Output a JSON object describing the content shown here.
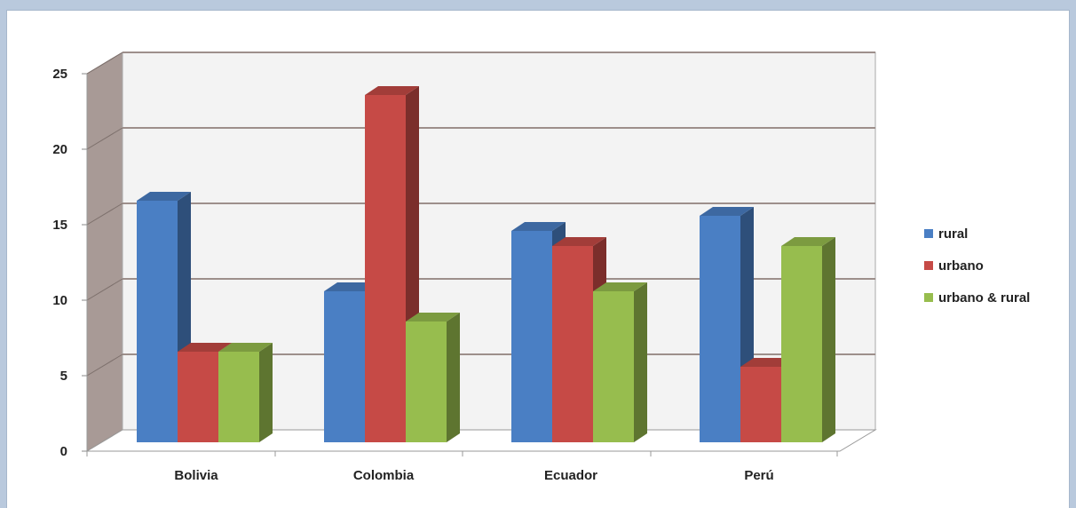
{
  "chart_data": {
    "type": "bar",
    "categories": [
      "Bolivia",
      "Colombia",
      "Ecuador",
      "Perú"
    ],
    "series": [
      {
        "name": "rural",
        "values": [
          16,
          10,
          14,
          15
        ]
      },
      {
        "name": "urbano",
        "values": [
          6,
          23,
          13,
          5
        ]
      },
      {
        "name": "urbano & rural",
        "values": [
          6,
          8,
          10,
          13
        ]
      }
    ],
    "ylim": [
      0,
      25
    ],
    "yticks": [
      "0",
      "5",
      "10",
      "15",
      "20",
      "25"
    ],
    "grid": true,
    "legend": "right",
    "colors": {
      "rural": "#4a7fc4",
      "urbano": "#c64a46",
      "urbano & rural": "#97bd4e"
    }
  }
}
